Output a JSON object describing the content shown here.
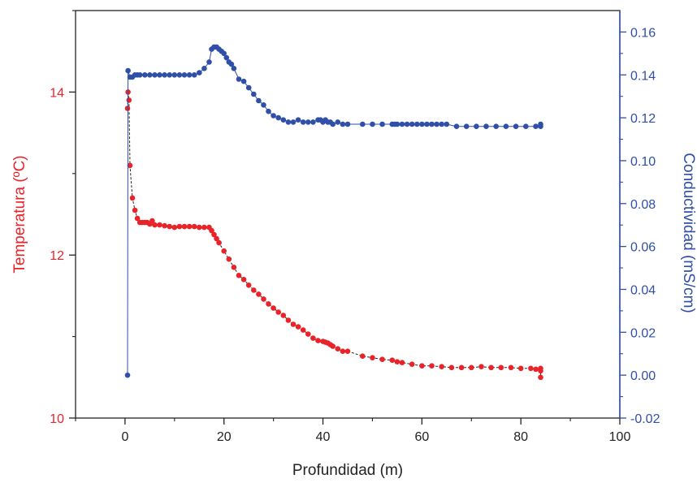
{
  "chart_data": {
    "type": "scatter",
    "xlabel": "Profundidad (m)",
    "ylabel_left": "Temperatura (ºC)",
    "ylabel_right": "Conductividad (mS/cm)",
    "xlim": [
      -10,
      100
    ],
    "ylim_left": [
      10,
      15
    ],
    "ylim_right": [
      -0.02,
      0.17
    ],
    "x_ticks": [
      0,
      20,
      40,
      60,
      80,
      100
    ],
    "y_left_ticks": [
      10,
      12,
      14
    ],
    "y_right_ticks": [
      -0.02,
      0.0,
      0.02,
      0.04,
      0.06,
      0.08,
      0.1,
      0.12,
      0.14,
      0.16
    ],
    "x_tick_labels": [
      "0",
      "20",
      "40",
      "60",
      "80",
      "100"
    ],
    "y_left_tick_labels": [
      "10",
      "12",
      "14"
    ],
    "y_right_tick_labels": [
      "-0.02",
      "0.00",
      "0.02",
      "0.04",
      "0.06",
      "0.08",
      "0.10",
      "0.12",
      "0.14",
      "0.16"
    ],
    "grid": false,
    "colors": {
      "temperature": "#e8232a",
      "conductivity": "#2f4fa8",
      "left_axis_text": "#e8232a",
      "right_axis_text": "#2f4fa8",
      "temperature_line": "#222222",
      "conductivity_line": "#2f4fa8"
    },
    "series": [
      {
        "axis": "left",
        "x": [
          0.5,
          0.6,
          0.8,
          1.0,
          1.5,
          2.0,
          2.5,
          3.0,
          3.5,
          4.0,
          4.5,
          5.0,
          5.5,
          6.0,
          7.0,
          8.0,
          9.0,
          10.0,
          11.0,
          12.0,
          13.0,
          14.0,
          15.0,
          16.0,
          17.0,
          17.5,
          18.0,
          18.5,
          19.0,
          20.0,
          21.0,
          22.0,
          23.0,
          24.0,
          25.0,
          26.0,
          27.0,
          28.0,
          29.0,
          30.0,
          31.0,
          32.0,
          33.0,
          34.0,
          35.0,
          36.0,
          37.0,
          38.0,
          39.0,
          40.0,
          40.5,
          41.0,
          41.5,
          42.0,
          43.0,
          44.0,
          45.0,
          48.0,
          50.0,
          52.0,
          54.0,
          55.0,
          56.0,
          58.0,
          60.0,
          62.0,
          64.0,
          66.0,
          68.0,
          70.0,
          72.0,
          74.0,
          76.0,
          78.0,
          80.0,
          82.0,
          83.0,
          84.0,
          84.0,
          84.0
        ],
        "y": [
          13.8,
          14.0,
          13.9,
          13.1,
          12.7,
          12.55,
          12.45,
          12.4,
          12.4,
          12.4,
          12.4,
          12.38,
          12.42,
          12.37,
          12.37,
          12.36,
          12.35,
          12.34,
          12.35,
          12.35,
          12.35,
          12.35,
          12.34,
          12.34,
          12.34,
          12.3,
          12.25,
          12.2,
          12.15,
          12.05,
          11.95,
          11.85,
          11.75,
          11.7,
          11.63,
          11.57,
          11.52,
          11.46,
          11.4,
          11.35,
          11.3,
          11.26,
          11.2,
          11.15,
          11.12,
          11.08,
          11.03,
          10.98,
          10.95,
          10.94,
          10.93,
          10.92,
          10.9,
          10.88,
          10.85,
          10.82,
          10.82,
          10.76,
          10.74,
          10.72,
          10.71,
          10.69,
          10.68,
          10.66,
          10.64,
          10.64,
          10.63,
          10.62,
          10.62,
          10.62,
          10.63,
          10.62,
          10.62,
          10.62,
          10.61,
          10.61,
          10.6,
          10.61,
          10.58,
          10.5
        ]
      },
      {
        "axis": "right",
        "x": [
          0.5,
          0.6,
          1.0,
          1.5,
          2.0,
          2.5,
          3.0,
          4.0,
          5.0,
          6.0,
          7.0,
          8.0,
          9.0,
          10.0,
          11.0,
          12.0,
          13.0,
          14.0,
          15.0,
          16.0,
          17.0,
          17.5,
          18.0,
          18.5,
          19.0,
          19.5,
          20.0,
          20.5,
          21.0,
          21.5,
          22.0,
          23.0,
          24.0,
          25.0,
          26.0,
          27.0,
          28.0,
          29.0,
          30.0,
          31.0,
          32.0,
          33.0,
          34.0,
          35.0,
          36.0,
          37.0,
          38.0,
          39.0,
          39.5,
          40.0,
          40.5,
          41.0,
          41.5,
          42.0,
          43.0,
          44.0,
          45.0,
          48.0,
          50.0,
          52.0,
          54.0,
          54.5,
          55.0,
          56.0,
          57.0,
          58.0,
          59.0,
          60.0,
          61.0,
          62.0,
          63.0,
          64.0,
          65.0,
          67.0,
          69.0,
          71.0,
          73.0,
          75.0,
          77.0,
          79.0,
          81.0,
          83.0,
          84.0,
          84.0
        ],
        "y": [
          0.0,
          0.142,
          0.139,
          0.139,
          0.14,
          0.14,
          0.14,
          0.14,
          0.14,
          0.14,
          0.14,
          0.14,
          0.14,
          0.14,
          0.14,
          0.14,
          0.14,
          0.14,
          0.141,
          0.143,
          0.146,
          0.152,
          0.153,
          0.153,
          0.152,
          0.151,
          0.15,
          0.148,
          0.146,
          0.145,
          0.143,
          0.138,
          0.137,
          0.134,
          0.131,
          0.128,
          0.126,
          0.123,
          0.121,
          0.12,
          0.119,
          0.118,
          0.118,
          0.119,
          0.118,
          0.118,
          0.118,
          0.119,
          0.119,
          0.118,
          0.119,
          0.118,
          0.118,
          0.117,
          0.118,
          0.117,
          0.117,
          0.117,
          0.117,
          0.117,
          0.117,
          0.117,
          0.117,
          0.117,
          0.117,
          0.117,
          0.117,
          0.117,
          0.117,
          0.117,
          0.117,
          0.117,
          0.117,
          0.116,
          0.116,
          0.116,
          0.116,
          0.116,
          0.116,
          0.116,
          0.116,
          0.116,
          0.116,
          0.117
        ]
      }
    ]
  }
}
